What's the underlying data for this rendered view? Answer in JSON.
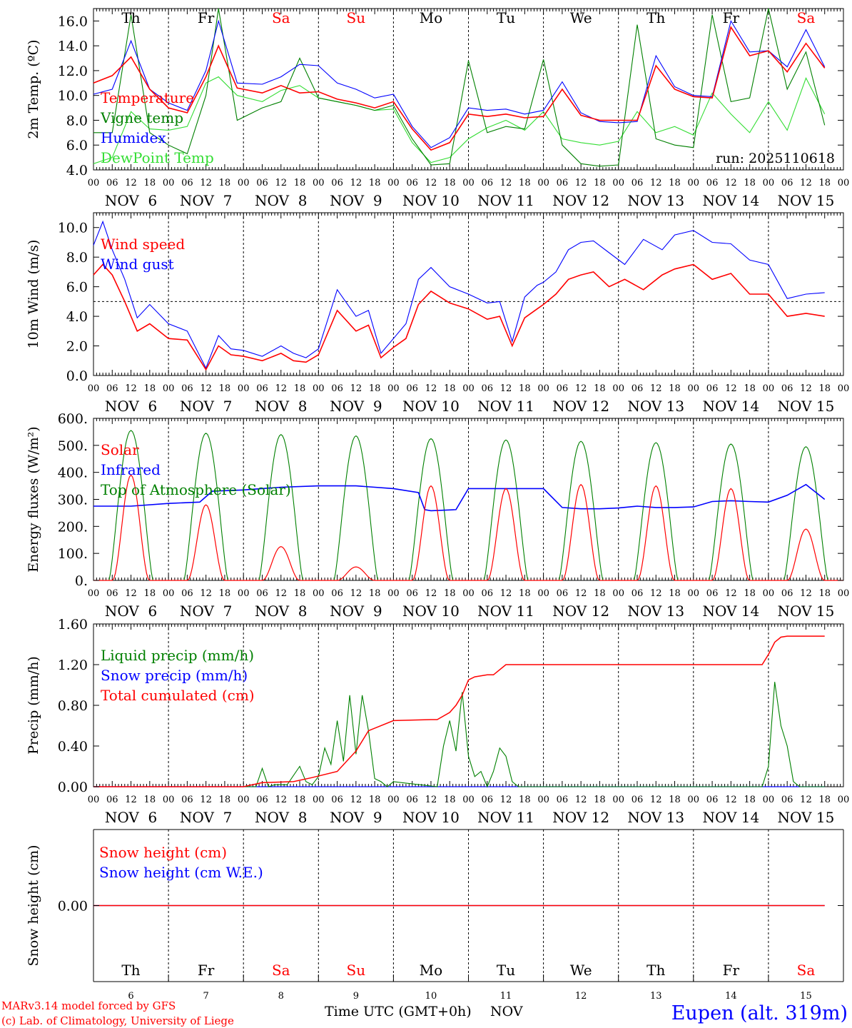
{
  "colors": {
    "red": "#ff0000",
    "green": "#008000",
    "blue": "#0000ff",
    "lightgreen": "#33dd33",
    "black": "#000000"
  },
  "days": [
    "Th",
    "Fr",
    "Sa",
    "Su",
    "Mo",
    "Tu",
    "We",
    "Th",
    "Fr",
    "Sa"
  ],
  "day_colors": [
    "black",
    "black",
    "red",
    "red",
    "black",
    "black",
    "black",
    "black",
    "black",
    "red"
  ],
  "dates": [
    "NOV  6",
    "NOV  7",
    "NOV  8",
    "NOV  9",
    "NOV 10",
    "NOV 11",
    "NOV 12",
    "NOV 13",
    "NOV 14",
    "NOV 15"
  ],
  "hour_labels": [
    "00",
    "06",
    "12",
    "18"
  ],
  "bottom_day_numbers": [
    "6",
    "7",
    "8",
    "9",
    "10",
    "11",
    "12",
    "13",
    "14",
    "15"
  ],
  "run_label": "run: 2025110618",
  "footer": {
    "model": "MARv3.14 model forced by GFS",
    "lab": "(c) Lab. of Climatology, University of Liege",
    "xlabel": "Time UTC (GMT+0h)",
    "month": "NOV",
    "station": "Eupen (alt. 319m)"
  },
  "chart_data": [
    {
      "type": "line",
      "title": "",
      "ylabel": "2m Temp. (ºC)",
      "ylim": [
        4,
        17
      ],
      "yticks": [
        "4.0",
        "6.0",
        "8.0",
        "10.0",
        "12.0",
        "14.0",
        "16.0"
      ],
      "ytick_values": [
        4,
        6,
        8,
        10,
        12,
        14,
        16
      ],
      "series": [
        {
          "name": "Temperature",
          "color": "red",
          "x": [
            0,
            6,
            12,
            18,
            24,
            30,
            36,
            40,
            46,
            54,
            60,
            66,
            72,
            78,
            84,
            90,
            96,
            102,
            108,
            114,
            120,
            126,
            132,
            138,
            144,
            150,
            156,
            162,
            168,
            174,
            180,
            186,
            192,
            198,
            204,
            210,
            216,
            222,
            228,
            234
          ],
          "values": [
            11,
            11.6,
            13.1,
            10.5,
            9,
            8.6,
            11.5,
            14,
            10.6,
            10.2,
            10.8,
            10.2,
            10.3,
            9.7,
            9.4,
            9,
            9.5,
            7.3,
            5.6,
            6.2,
            8.5,
            8.3,
            8.5,
            8.2,
            8.3,
            10.5,
            8.4,
            8,
            8,
            8,
            12.4,
            10.5,
            9.9,
            9.8,
            15.5,
            13.2,
            13.6,
            11.9,
            14.2,
            12.2
          ]
        },
        {
          "name": "Vigne temp",
          "color": "green",
          "x": [
            0,
            6,
            12,
            18,
            24,
            30,
            36,
            40,
            46,
            54,
            60,
            66,
            72,
            78,
            84,
            90,
            96,
            102,
            108,
            114,
            120,
            126,
            132,
            138,
            144,
            150,
            156,
            162,
            168,
            174,
            180,
            186,
            192,
            198,
            204,
            210,
            216,
            222,
            228,
            234
          ],
          "values": [
            7,
            7,
            16.5,
            7,
            6,
            5.3,
            10,
            17,
            8,
            9,
            9.5,
            13,
            9.8,
            9.5,
            9.2,
            8.8,
            9.2,
            6.5,
            4.4,
            4.5,
            12.8,
            7,
            7.5,
            7.3,
            12.9,
            6,
            4.5,
            4.3,
            4.4,
            15.7,
            6.5,
            6,
            5.8,
            16.5,
            9.5,
            9.8,
            17,
            10.5,
            13.5,
            7.6
          ]
        },
        {
          "name": "Humidex",
          "color": "blue",
          "x": [
            0,
            6,
            12,
            18,
            24,
            30,
            36,
            40,
            46,
            54,
            60,
            66,
            72,
            78,
            84,
            90,
            96,
            102,
            108,
            114,
            120,
            126,
            132,
            138,
            144,
            150,
            156,
            162,
            168,
            174,
            180,
            186,
            192,
            198,
            204,
            210,
            216,
            222,
            228,
            234
          ],
          "values": [
            10.1,
            10.5,
            14.4,
            10.5,
            9.4,
            8.8,
            12,
            16,
            11,
            10.9,
            11.5,
            12.5,
            12.4,
            11,
            10.5,
            9.8,
            10.1,
            7.5,
            5.8,
            6.6,
            9,
            8.8,
            8.9,
            8.5,
            8.8,
            11.1,
            8.6,
            7.9,
            7.8,
            7.9,
            13.2,
            10.7,
            10,
            9.9,
            16,
            13.5,
            13.6,
            12.3,
            15.3,
            12.3
          ]
        },
        {
          "name": "DewPoint Temp",
          "color": "lightgreen",
          "x": [
            0,
            6,
            12,
            18,
            24,
            30,
            36,
            40,
            46,
            54,
            60,
            66,
            72,
            78,
            84,
            90,
            96,
            102,
            108,
            114,
            120,
            126,
            132,
            138,
            144,
            150,
            156,
            162,
            168,
            174,
            180,
            186,
            192,
            198,
            204,
            210,
            216,
            222,
            228,
            234
          ],
          "values": [
            4.5,
            5,
            8.7,
            7.3,
            7.2,
            7.5,
            11,
            11.5,
            10,
            9.5,
            10.4,
            10.8,
            9.8,
            9.5,
            9.2,
            8.8,
            8.9,
            6.2,
            4.6,
            5,
            6.5,
            7.4,
            8,
            7.2,
            8.7,
            6.5,
            6.2,
            6,
            6.3,
            8.7,
            7,
            7.5,
            6.8,
            10.2,
            8.5,
            7,
            9.5,
            7.2,
            11.4,
            8.5
          ]
        }
      ]
    },
    {
      "type": "line",
      "title": "",
      "ylabel": "10m Wind (m/s)",
      "ylim": [
        0,
        11
      ],
      "yticks": [
        "0.0",
        "2.0",
        "4.0",
        "6.0",
        "8.0",
        "10.0"
      ],
      "ytick_values": [
        0,
        2,
        4,
        6,
        8,
        10
      ],
      "reference_line": 5,
      "series": [
        {
          "name": "Wind speed",
          "color": "red",
          "x": [
            0,
            3,
            6,
            10,
            14,
            18,
            24,
            30,
            36,
            40,
            44,
            48,
            54,
            60,
            64,
            68,
            72,
            78,
            84,
            88,
            92,
            96,
            100,
            104,
            108,
            114,
            120,
            126,
            130,
            134,
            138,
            142,
            144,
            148,
            152,
            156,
            160,
            165,
            170,
            176,
            182,
            186,
            192,
            198,
            204,
            210,
            216,
            222,
            228,
            234
          ],
          "values": [
            6.8,
            7.5,
            6.8,
            5,
            3,
            3.5,
            2.5,
            2.4,
            0.4,
            2,
            1.4,
            1.3,
            1,
            1.5,
            1,
            0.9,
            1.4,
            4.4,
            3,
            3.4,
            1.2,
            1.9,
            2.5,
            4.8,
            5.7,
            4.9,
            4.5,
            3.8,
            4,
            2,
            3.9,
            4.5,
            4.8,
            5.5,
            6.5,
            6.8,
            7,
            6,
            6.5,
            5.8,
            6.8,
            7.2,
            7.5,
            6.5,
            6.9,
            5.5,
            5.5,
            4,
            4.2,
            4
          ]
        },
        {
          "name": "Wind gust",
          "color": "blue",
          "x": [
            0,
            3,
            6,
            10,
            14,
            18,
            24,
            30,
            36,
            40,
            44,
            48,
            54,
            60,
            64,
            68,
            72,
            78,
            84,
            88,
            92,
            96,
            100,
            104,
            108,
            114,
            120,
            126,
            130,
            134,
            138,
            142,
            144,
            148,
            152,
            156,
            160,
            165,
            170,
            176,
            182,
            186,
            192,
            198,
            204,
            210,
            216,
            222,
            228,
            234
          ],
          "values": [
            8.8,
            10.4,
            8.5,
            6.5,
            3.9,
            4.8,
            3.5,
            3,
            0.5,
            2.7,
            1.8,
            1.7,
            1.3,
            2,
            1.5,
            1.2,
            1.8,
            5.8,
            4,
            4.4,
            1.5,
            2.5,
            3.5,
            6.5,
            7.3,
            6,
            5.5,
            4.9,
            5,
            2.3,
            5.3,
            6.1,
            6.3,
            7,
            8.5,
            9,
            9.1,
            8.3,
            7.5,
            9.2,
            8.5,
            9.5,
            9.8,
            9,
            8.9,
            7.8,
            7.5,
            5.2,
            5.5,
            5.6
          ]
        }
      ]
    },
    {
      "type": "line",
      "title": "",
      "ylabel": "Energy fluxes (W/m²)",
      "ylim": [
        0,
        600
      ],
      "yticks": [
        "0.",
        "100.",
        "200.",
        "300.",
        "400.",
        "500.",
        "600."
      ],
      "ytick_values": [
        0,
        100,
        200,
        300,
        400,
        500,
        600
      ],
      "series": [
        {
          "name": "Solar",
          "color": "red",
          "peaks": [
            390,
            280,
            125,
            50,
            350,
            340,
            355,
            350,
            340,
            190
          ]
        },
        {
          "name": "Infrared",
          "color": "blue",
          "x": [
            0,
            12,
            24,
            34,
            38,
            48,
            60,
            72,
            84,
            96,
            104,
            106,
            108,
            116,
            120,
            132,
            144,
            150,
            156,
            162,
            168,
            174,
            180,
            186,
            192,
            198,
            204,
            210,
            216,
            222,
            228,
            234
          ],
          "values": [
            275,
            275,
            285,
            290,
            330,
            335,
            345,
            350,
            350,
            340,
            325,
            262,
            258,
            262,
            340,
            340,
            340,
            270,
            265,
            265,
            268,
            275,
            270,
            270,
            272,
            292,
            295,
            292,
            290,
            315,
            355,
            300
          ]
        },
        {
          "name": "Top of Atmosphere (Solar)",
          "color": "green",
          "peaks": [
            555,
            545,
            540,
            535,
            525,
            520,
            515,
            510,
            505,
            495
          ]
        }
      ]
    },
    {
      "type": "line",
      "title": "",
      "ylabel": "Precip (mm/h)",
      "ylim": [
        0,
        1.6
      ],
      "yticks": [
        "0.00",
        "0.40",
        "0.80",
        "1.20",
        "1.60"
      ],
      "ytick_values": [
        0,
        0.4,
        0.8,
        1.2,
        1.6
      ],
      "series": [
        {
          "name": "Liquid precip (mm/h)",
          "color": "green",
          "x": [
            0,
            52,
            54,
            56,
            58,
            62,
            66,
            68,
            70,
            72,
            74,
            76,
            78,
            80,
            82,
            84,
            86,
            88,
            90,
            92,
            94,
            96,
            110,
            112,
            114,
            116,
            118,
            120,
            122,
            124,
            126,
            128,
            130,
            132,
            134,
            136,
            214,
            216,
            218,
            220,
            222,
            224,
            226,
            234
          ],
          "values": [
            0,
            0,
            0.18,
            0,
            0.02,
            0.02,
            0.2,
            0.05,
            0.02,
            0.1,
            0.38,
            0.22,
            0.65,
            0.25,
            0.9,
            0.32,
            0.9,
            0.55,
            0.08,
            0.05,
            0,
            0.05,
            0,
            0.4,
            0.65,
            0.35,
            0.93,
            0.3,
            0.1,
            0.15,
            0,
            0.15,
            0.38,
            0.3,
            0.05,
            0,
            0,
            0.2,
            1.03,
            0.6,
            0.4,
            0.05,
            0,
            0
          ]
        },
        {
          "name": "Snow precip (mm/h)",
          "color": "blue",
          "x": [
            0,
            234
          ],
          "values": [
            0,
            0
          ]
        },
        {
          "name": "Total cumulated (cm)",
          "color": "red",
          "x": [
            0,
            48,
            54,
            64,
            70,
            78,
            84,
            88,
            96,
            108,
            110,
            114,
            116,
            118,
            120,
            122,
            126,
            128,
            132,
            168,
            210,
            214,
            216,
            218,
            220,
            222,
            226,
            234
          ],
          "values": [
            0,
            0,
            0.04,
            0.05,
            0.09,
            0.15,
            0.35,
            0.55,
            0.65,
            0.66,
            0.66,
            0.73,
            0.8,
            0.9,
            1.05,
            1.08,
            1.1,
            1.1,
            1.2,
            1.2,
            1.2,
            1.2,
            1.3,
            1.42,
            1.47,
            1.48,
            1.48,
            1.48
          ]
        }
      ]
    },
    {
      "type": "line",
      "title": "",
      "ylabel": "Snow height (cm)",
      "ylim": [
        -0.01,
        0.01
      ],
      "yticks": [
        "0.00"
      ],
      "ytick_values": [
        0
      ],
      "series": [
        {
          "name": "Snow height (cm)",
          "color": "red",
          "x": [
            0,
            234
          ],
          "values": [
            0,
            0
          ]
        },
        {
          "name": "Snow height (cm W.E.)",
          "color": "blue",
          "x": [
            0,
            234
          ],
          "values": [
            0,
            0
          ]
        }
      ]
    }
  ]
}
